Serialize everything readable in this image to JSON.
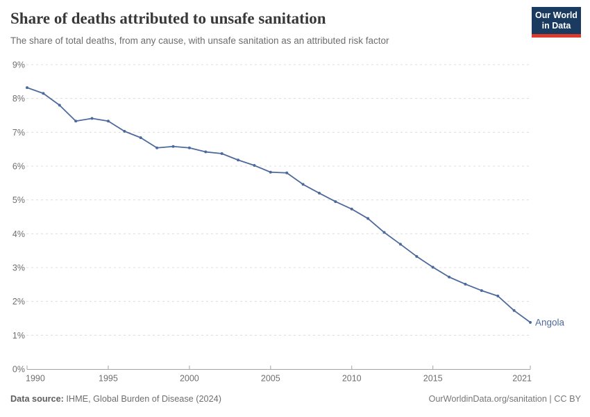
{
  "header": {
    "title": "Share of deaths attributed to unsafe sanitation",
    "subtitle": "The share of total deaths, from any cause, with unsafe sanitation as an attributed risk factor",
    "logo": {
      "line1": "Our World",
      "line2": "in Data"
    }
  },
  "chart_data": {
    "type": "line",
    "title": "Share of deaths attributed to unsafe sanitation",
    "xlabel": "",
    "ylabel": "",
    "xlim": [
      1990,
      2021
    ],
    "ylim": [
      0,
      9
    ],
    "x_ticks": [
      1990,
      1995,
      2000,
      2005,
      2010,
      2015,
      2021
    ],
    "y_ticks": [
      0,
      1,
      2,
      3,
      4,
      5,
      6,
      7,
      8,
      9
    ],
    "y_tick_suffix": "%",
    "grid": "horizontal-dashed",
    "legend_position": "end-of-line-label",
    "series": [
      {
        "name": "Angola",
        "color": "#4C6A9C",
        "x": [
          1990,
          1991,
          1992,
          1993,
          1994,
          1995,
          1996,
          1997,
          1998,
          1999,
          2000,
          2001,
          2002,
          2003,
          2004,
          2005,
          2006,
          2007,
          2008,
          2009,
          2010,
          2011,
          2012,
          2013,
          2014,
          2015,
          2016,
          2017,
          2018,
          2019,
          2020,
          2021
        ],
        "values": [
          8.32,
          8.15,
          7.8,
          7.33,
          7.41,
          7.33,
          7.03,
          6.84,
          6.54,
          6.58,
          6.54,
          6.42,
          6.37,
          6.18,
          6.02,
          5.82,
          5.8,
          5.46,
          5.2,
          4.95,
          4.73,
          4.45,
          4.04,
          3.69,
          3.33,
          3.01,
          2.72,
          2.51,
          2.32,
          2.16,
          1.73,
          1.38
        ]
      }
    ],
    "colors": {
      "line": "#4C6A9C",
      "gridline": "#dcdcdc",
      "axis": "#a3a3a3",
      "tick_label": "#6e6e6e"
    }
  },
  "footer": {
    "source_label": "Data source:",
    "source_text": " IHME, Global Burden of Disease (2024)",
    "credit": "OurWorldinData.org/sanitation | CC BY"
  }
}
